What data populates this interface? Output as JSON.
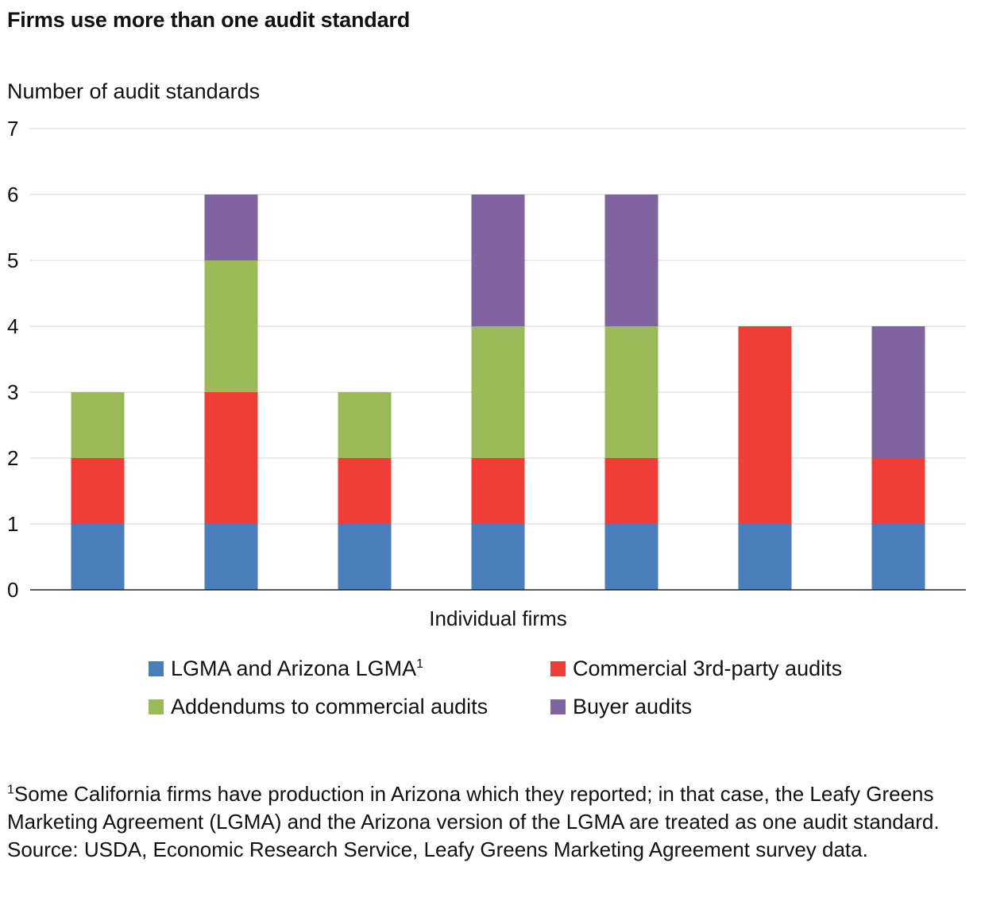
{
  "title": "Firms use more than one audit standard",
  "chart_data": {
    "type": "bar",
    "stacked": true,
    "title": "Firms use more than one audit standard",
    "ylabel": "Number of audit standards",
    "xlabel": "Individual firms",
    "ylim": [
      0,
      7
    ],
    "yticks": [
      "0",
      "1",
      "2",
      "3",
      "4",
      "5",
      "6",
      "7"
    ],
    "grid": true,
    "legend_position": "bottom",
    "categories": [
      "",
      "",
      "",
      "",
      "",
      "",
      ""
    ],
    "series": [
      {
        "name": "LGMA and Arizona LGMA",
        "name_sup": "1",
        "color": "#4a7ebb",
        "values": [
          1,
          1,
          1,
          1,
          1,
          1,
          1
        ]
      },
      {
        "name": "Commercial 3rd-party audits",
        "color": "#ef3e36",
        "values": [
          1,
          2,
          1,
          1,
          1,
          3,
          1
        ]
      },
      {
        "name": "Addendums to commercial audits",
        "color": "#9bbb59",
        "values": [
          1,
          2,
          1,
          2,
          2,
          0,
          0
        ]
      },
      {
        "name": "Buyer audits",
        "color": "#8064a2",
        "values": [
          0,
          1,
          0,
          2,
          2,
          0,
          2
        ]
      }
    ]
  },
  "footnote": {
    "marker": "1",
    "text": "Some California firms have production in Arizona which they reported; in that case, the Leafy Greens Marketing Agreement (LGMA) and the Arizona version of the LGMA are treated as one audit standard."
  },
  "source": "Source: USDA, Economic Research Service, Leafy Greens Marketing Agreement survey data."
}
